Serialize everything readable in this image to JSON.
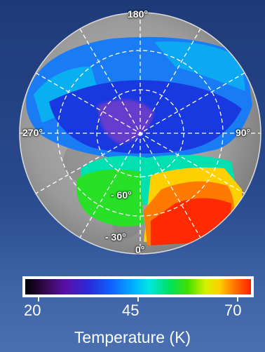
{
  "map": {
    "longitude_labels": {
      "top": "180°",
      "left": "270°",
      "right": "90°",
      "bottom": "0°"
    },
    "latitude_labels": {
      "inner": "- 60°",
      "outer": "- 30°"
    }
  },
  "legend": {
    "ticks": [
      "20",
      "45",
      "70"
    ],
    "title": "Temperature (K)",
    "colormap": [
      "#000000",
      "#3a0a5a",
      "#5a10a8",
      "#2a2ad8",
      "#1060ff",
      "#00b0ff",
      "#00e8e0",
      "#00e060",
      "#40e000",
      "#d8f000",
      "#ffd000",
      "#ff7000",
      "#ff2000"
    ]
  },
  "colors": {
    "background": "#284a8e",
    "label_text": "#ffffff"
  }
}
